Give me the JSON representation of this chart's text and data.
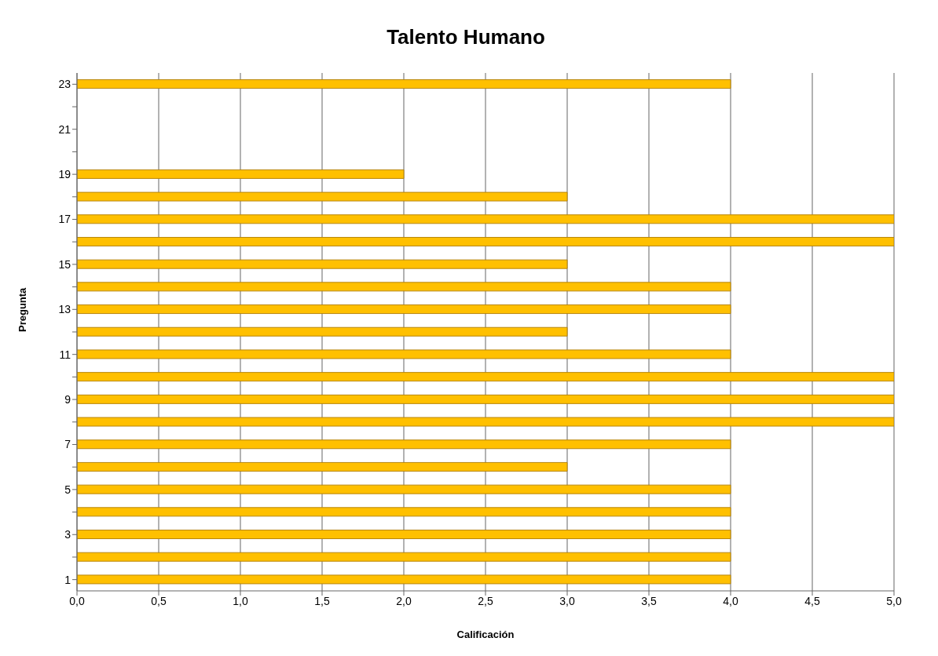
{
  "chart_data": {
    "type": "bar",
    "orientation": "horizontal",
    "title": "Talento Humano",
    "xlabel": "Calificación",
    "ylabel": "Pregunta",
    "categories": [
      "23",
      null,
      "21",
      null,
      "19",
      null,
      "17",
      null,
      "15",
      null,
      "13",
      null,
      "11",
      null,
      "9",
      null,
      "7",
      null,
      "5",
      null,
      "3",
      null,
      "1"
    ],
    "values": [
      4,
      null,
      null,
      null,
      2,
      3,
      5,
      5,
      3,
      4,
      4,
      3,
      4,
      5,
      5,
      5,
      4,
      3,
      4,
      4,
      4,
      4,
      4
    ],
    "color": "#ffc000",
    "xlim": [
      0,
      5
    ],
    "xticks": [
      {
        "value": 0,
        "label": "0,0"
      },
      {
        "value": 0.5,
        "label": "0,5"
      },
      {
        "value": 1,
        "label": "1,0"
      },
      {
        "value": 1.5,
        "label": "1,5"
      },
      {
        "value": 2,
        "label": "2,0"
      },
      {
        "value": 2.5,
        "label": "2,5"
      },
      {
        "value": 3,
        "label": "3,0"
      },
      {
        "value": 3.5,
        "label": "3,5"
      },
      {
        "value": 4,
        "label": "4,0"
      },
      {
        "value": 4.5,
        "label": "4,5"
      },
      {
        "value": 5,
        "label": "5,0"
      }
    ],
    "grid": "x"
  }
}
